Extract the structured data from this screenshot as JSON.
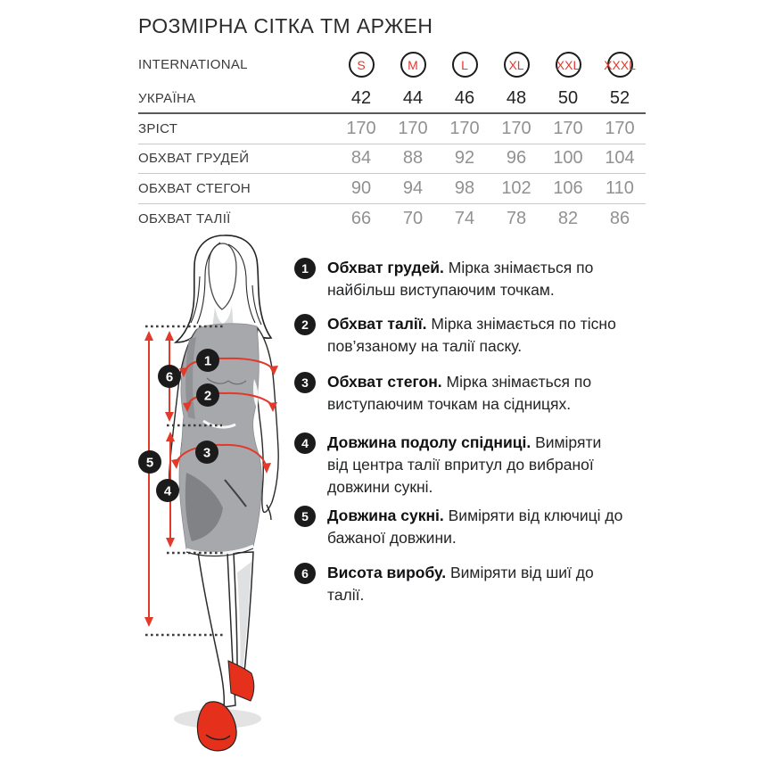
{
  "title": "РОЗМІРНА СІТКА ТМ АРЖЕН",
  "table": {
    "rows_top": [
      {
        "label": "INTERNATIONAL",
        "values": [
          "S",
          "M",
          "L",
          "XL",
          "XXL",
          "XXXL"
        ]
      },
      {
        "label": "УКРАЇНА",
        "values": [
          "42",
          "44",
          "46",
          "48",
          "50",
          "52"
        ]
      }
    ],
    "rows_measure": [
      {
        "label": "ЗРІСТ",
        "values": [
          "170",
          "170",
          "170",
          "170",
          "170",
          "170"
        ]
      },
      {
        "label": "ОБХВАТ ГРУДЕЙ",
        "values": [
          "84",
          "88",
          "92",
          "96",
          "100",
          "104"
        ]
      },
      {
        "label": "ОБХВАТ СТЕГОН",
        "values": [
          "90",
          "94",
          "98",
          "102",
          "106",
          "110"
        ]
      },
      {
        "label": "ОБХВАТ ТАЛІЇ",
        "values": [
          "66",
          "70",
          "74",
          "78",
          "82",
          "86"
        ]
      }
    ]
  },
  "figure": {
    "markers": [
      "1",
      "2",
      "3",
      "4",
      "5",
      "6"
    ]
  },
  "legend": [
    {
      "num": "1",
      "label": "Обхват грудей.",
      "text": "Мірка знімається по найбільш виступаючим точкам."
    },
    {
      "num": "2",
      "label": "Обхват талії.",
      "text": "Мірка знімається по тісно пов’язаному на талії паску."
    },
    {
      "num": "3",
      "label": "Обхват стегон.",
      "text": "Мірка знімається по виступаючим точкам на сідницях."
    },
    {
      "num": "4",
      "label": "Довжина подолу спідниці.",
      "text": "Виміряти від центра талії впритул до вибраної довжини сукні."
    },
    {
      "num": "5",
      "label": "Довжина сукні.",
      "text": "Виміряти від ключиці до бажаної довжини."
    },
    {
      "num": "6",
      "label": "Висота виробу.",
      "text": "Виміряти від шиї до талії."
    }
  ],
  "colors": {
    "accent_red": "#e2392b",
    "text_dark": "#2b2b2b",
    "value_gray": "#8f9193",
    "dress_gray": "#a6a8ab",
    "marker_black": "#1b1b1b"
  }
}
